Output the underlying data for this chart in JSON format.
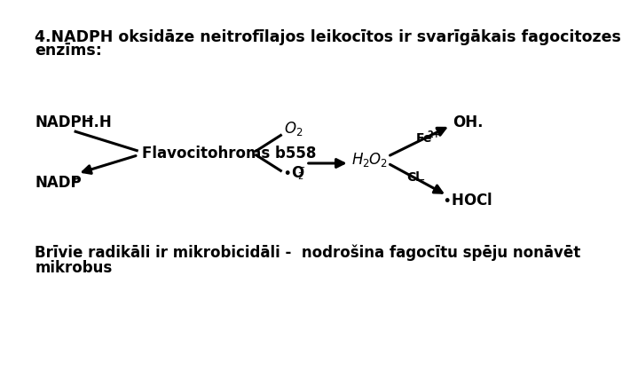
{
  "title_line1": "4.NADPH oksidāze neitrofīlajos leikocītos ir svarīgākais fagocitozes",
  "title_line2": "enzīms:",
  "bottom_text_line1": "Brīvie radikāli ir mikrobicidāli -  nodrošina fagocītu spēju nonāvēt",
  "bottom_text_line2": "mikrobus",
  "background_color": "#ffffff",
  "text_color": "#000000",
  "font_size_title": 12.5,
  "font_size_labels": 12,
  "font_size_bottom": 12
}
